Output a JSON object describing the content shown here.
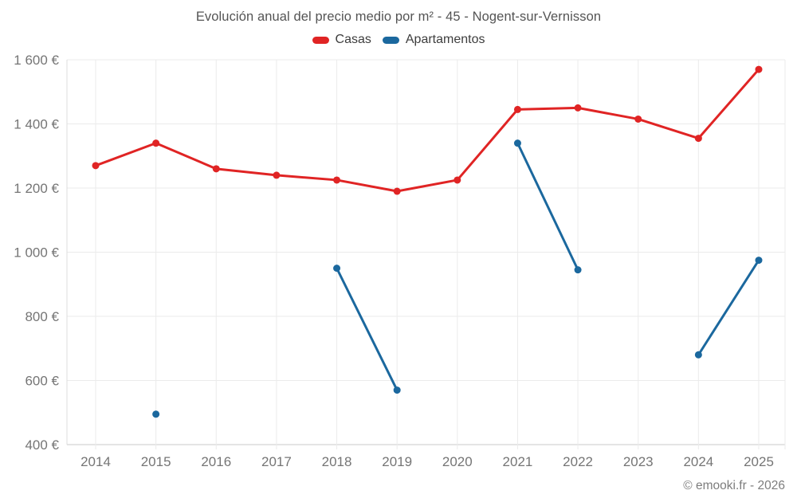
{
  "title": "Evolución anual del precio medio por m² - 45 - Nogent-sur-Vernisson",
  "footer": "© emooki.fr - 2026",
  "colors": {
    "casas": "#e02424",
    "apartamentos": "#1b689e",
    "grid": "#ebebeb",
    "axis_line": "#c9c9c9",
    "left_axis_line": "#dcdcdc",
    "tick_text": "#757575",
    "title_text": "#545454",
    "background": "#ffffff"
  },
  "chart_data": {
    "type": "line",
    "title": "Evolución anual del precio medio por m² - 45 - Nogent-sur-Vernisson",
    "categories": [
      "2014",
      "2015",
      "2016",
      "2017",
      "2018",
      "2019",
      "2020",
      "2021",
      "2022",
      "2023",
      "2024",
      "2025"
    ],
    "series": [
      {
        "name": "Casas",
        "color": "#e02424",
        "values": [
          1270,
          1340,
          1260,
          1240,
          1225,
          1190,
          1225,
          1445,
          1450,
          1415,
          1355,
          1570
        ]
      },
      {
        "name": "Apartamentos",
        "color": "#1b689e",
        "values": [
          null,
          495,
          null,
          null,
          950,
          570,
          null,
          1340,
          945,
          null,
          680,
          975
        ]
      }
    ],
    "xlabel": "",
    "ylabel": "",
    "y_unit": "€",
    "ylim": [
      400,
      1600
    ],
    "y_ticks": [
      400,
      600,
      800,
      1000,
      1200,
      1400,
      1600
    ],
    "y_tick_labels": [
      "400 €",
      "600 €",
      "800 €",
      "1 000 €",
      "1 200 €",
      "1 400 €",
      "1 600 €"
    ],
    "grid": true,
    "legend_position": "top"
  }
}
